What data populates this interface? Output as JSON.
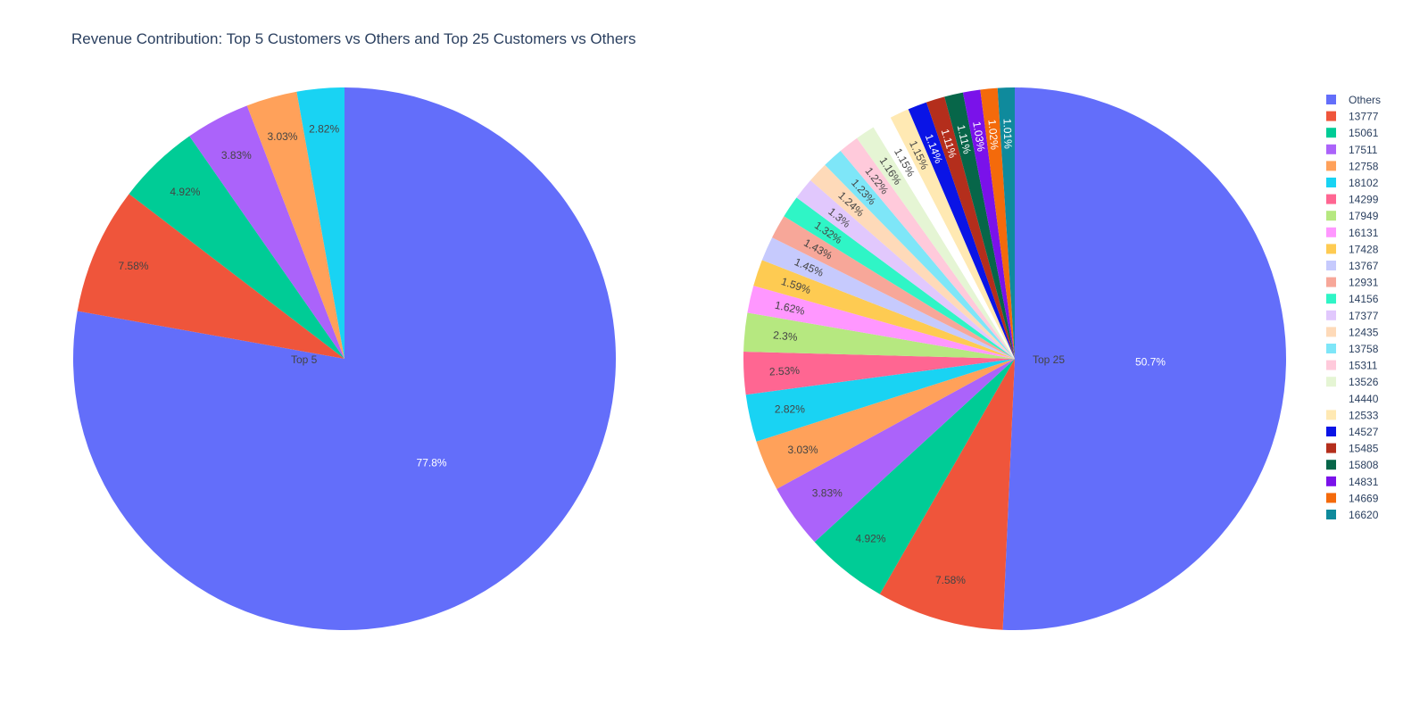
{
  "chart_data": {
    "type": "pie",
    "title": "Revenue Contribution: Top 5 Customers vs Others and Top 25 Customers vs Others",
    "pies": [
      {
        "name": "Top 5",
        "labels": [
          "Others",
          "13777",
          "15061",
          "17511",
          "12758",
          "18102"
        ],
        "values": [
          77.8,
          7.58,
          4.92,
          3.83,
          3.03,
          2.82
        ],
        "text": [
          "77.8%",
          "7.58%",
          "4.92%",
          "3.83%",
          "3.03%",
          "2.82%"
        ]
      },
      {
        "name": "Top 25",
        "labels": [
          "Others",
          "13777",
          "15061",
          "17511",
          "12758",
          "18102",
          "14299",
          "17949",
          "16131",
          "17428",
          "13767",
          "12931",
          "14156",
          "17377",
          "12435",
          "13758",
          "15311",
          "13526",
          "14440",
          "12533",
          "14527",
          "15485",
          "15808",
          "14831",
          "14669",
          "16620"
        ],
        "values": [
          50.7,
          7.58,
          4.92,
          3.83,
          3.03,
          2.82,
          2.53,
          2.3,
          1.62,
          1.59,
          1.45,
          1.43,
          1.32,
          1.3,
          1.24,
          1.23,
          1.22,
          1.16,
          1.15,
          1.15,
          1.14,
          1.11,
          1.11,
          1.03,
          1.02,
          1.01
        ],
        "text": [
          "50.7%",
          "7.58%",
          "4.92%",
          "3.83%",
          "3.03%",
          "2.82%",
          "2.53%",
          "2.3%",
          "1.62%",
          "1.59%",
          "1.45%",
          "1.43%",
          "1.32%",
          "1.3%",
          "1.24%",
          "1.23%",
          "1.22%",
          "1.16%",
          "1.15%",
          "1.15%",
          "1.14%",
          "1.11%",
          "1.11%",
          "1.03%",
          "1.02%",
          "1.01%"
        ]
      }
    ],
    "legend": {
      "position": "top-right",
      "entries": [
        "Others",
        "13777",
        "15061",
        "17511",
        "12758",
        "18102",
        "14299",
        "17949",
        "16131",
        "17428",
        "13767",
        "12931",
        "14156",
        "17377",
        "12435",
        "13758",
        "15311",
        "13526",
        "14440",
        "12533",
        "14527",
        "15485",
        "15808",
        "14831",
        "14669",
        "16620"
      ]
    },
    "colors": {
      "Others": "#636efa",
      "13777": "#EF553B",
      "15061": "#00cc96",
      "17511": "#ab63fa",
      "12758": "#FFA15A",
      "18102": "#19d3f3",
      "14299": "#FF6692",
      "17949": "#B6E880",
      "16131": "#FF97FF",
      "17428": "#FECB52",
      "13767": "#c6caFD",
      "12931": "#F7A799",
      "14156": "#2FF5C6",
      "17377": "#e1c8FD",
      "12435": "#FEDAB9",
      "13758": "#7ee6f8",
      "15311": "#FFcadb",
      "13526": "#E5F5D4",
      "14440": "#FFFFFF",
      "12533": "#FFE9B3",
      "14527": "#0a14e6",
      "15485": "#B42E1C",
      "15808": "#076649",
      "14831": "#7a12ea",
      "14669": "#F46A0B",
      "16620": "#0f8a9c"
    },
    "dark_text_on": [
      "Others",
      "14527",
      "15485",
      "15808",
      "14831",
      "14669",
      "16620"
    ]
  }
}
